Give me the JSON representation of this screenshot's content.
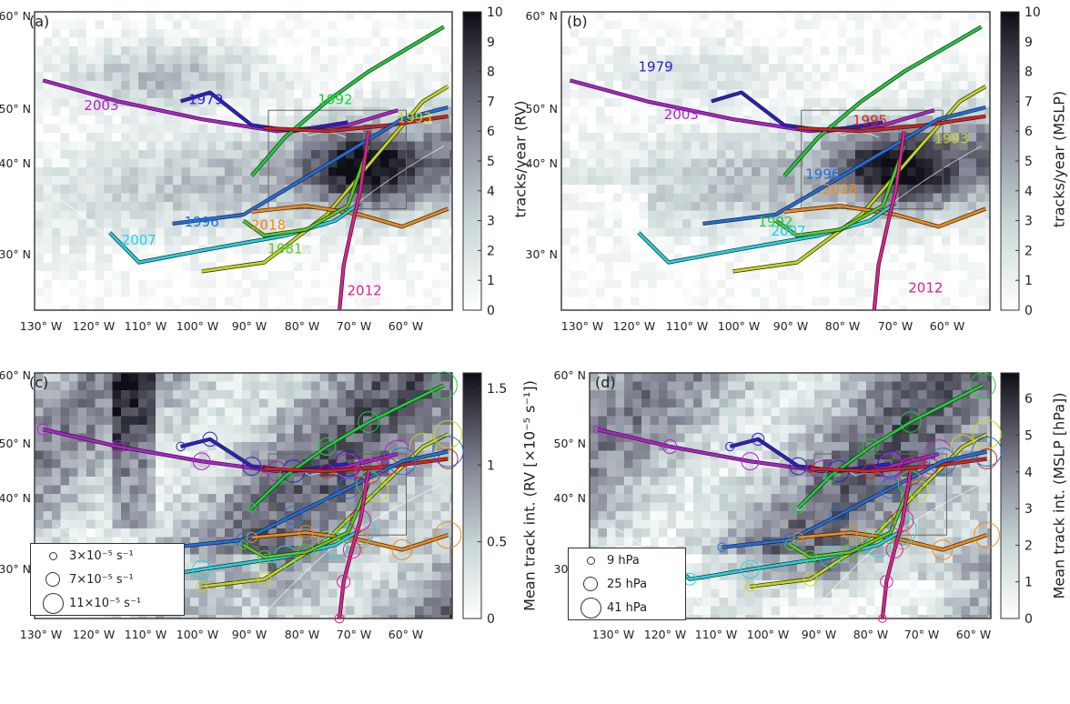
{
  "panels": [
    {
      "label": "(a)",
      "colorbar": {
        "label": "tracks/year (RV)",
        "ticks": [
          "0",
          "1",
          "2",
          "3",
          "4",
          "5",
          "6",
          "7",
          "8",
          "9",
          "10"
        ]
      }
    },
    {
      "label": "(b)",
      "colorbar": {
        "label": "tracks/year (MSLP)",
        "ticks": [
          "0",
          "1",
          "2",
          "3",
          "4",
          "5",
          "6",
          "7",
          "8",
          "9",
          "10"
        ]
      }
    },
    {
      "label": "(c)",
      "colorbar": {
        "label": "Mean track int. (RV [×10⁻⁵ s⁻¹])",
        "ticks": [
          "0",
          "0.5",
          "1",
          "1.5"
        ]
      }
    },
    {
      "label": "(d)",
      "colorbar": {
        "label": "Mean track int. (MSLP [hPa])",
        "ticks": [
          "0",
          "1",
          "2",
          "3",
          "4",
          "5",
          "6"
        ]
      }
    }
  ],
  "lat_ticks": [
    "30° N",
    "40° N",
    "50° N",
    "60° N"
  ],
  "lon_ticks": [
    "130° W",
    "120° W",
    "110° W",
    "100° W",
    "90° W",
    "80° W",
    "70° W",
    "60° W"
  ],
  "storm_colors": {
    "1979": "#2b1fc7",
    "2003": "#b21fd0",
    "1992": "#1fcc3a",
    "1993": "#c6d61a",
    "1995": "#d81f1f",
    "1996": "#1f6fe0",
    "2018": "#ef8a15",
    "2007": "#22d2e0",
    "1981": "#55cc22",
    "2012": "#e01f8f"
  },
  "panel_a_labels": [
    {
      "text": "1979",
      "color": "#2b1fc7"
    },
    {
      "text": "2003",
      "color": "#b21fd0"
    },
    {
      "text": "1992",
      "color": "#1fcc3a"
    },
    {
      "text": "1993",
      "color": "#c6d61a"
    },
    {
      "text": "1996",
      "color": "#1f6fe0"
    },
    {
      "text": "2018",
      "color": "#ef8a15"
    },
    {
      "text": "2007",
      "color": "#22d2e0"
    },
    {
      "text": "1981",
      "color": "#55cc22"
    },
    {
      "text": "2012",
      "color": "#e01f8f"
    }
  ],
  "panel_b_labels": [
    {
      "text": "1979",
      "color": "#2b1fc7"
    },
    {
      "text": "2003",
      "color": "#b21fd0"
    },
    {
      "text": "1995",
      "color": "#d81f1f"
    },
    {
      "text": "1993",
      "color": "#c6d61a"
    },
    {
      "text": "1996",
      "color": "#1f6fe0"
    },
    {
      "text": "2018",
      "color": "#ef8a15"
    },
    {
      "text": "1992",
      "color": "#1fcc3a"
    },
    {
      "text": "2007",
      "color": "#22d2e0"
    },
    {
      "text": "2012",
      "color": "#e01f8f"
    }
  ],
  "legend_c": [
    "3×10⁻⁵ s⁻¹",
    "7×10⁻⁵ s⁻¹",
    "11×10⁻⁵ s⁻¹"
  ],
  "legend_d": [
    "9 hPa",
    "25 hPa",
    "41 hPa"
  ]
}
